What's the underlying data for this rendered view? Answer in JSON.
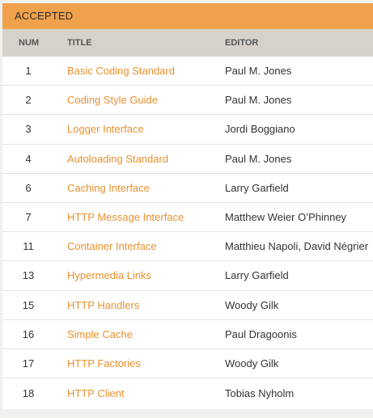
{
  "section": {
    "title": "ACCEPTED"
  },
  "columns": {
    "num": "NUM",
    "title": "TITLE",
    "editor": "EDITOR"
  },
  "rows": [
    {
      "num": "1",
      "title": "Basic Coding Standard",
      "editor": "Paul M. Jones"
    },
    {
      "num": "2",
      "title": "Coding Style Guide",
      "editor": "Paul M. Jones"
    },
    {
      "num": "3",
      "title": "Logger Interface",
      "editor": "Jordi Boggiano"
    },
    {
      "num": "4",
      "title": "Autoloading Standard",
      "editor": "Paul M. Jones"
    },
    {
      "num": "6",
      "title": "Caching Interface",
      "editor": "Larry Garfield"
    },
    {
      "num": "7",
      "title": "HTTP Message Interface",
      "editor": "Matthew Weier O’Phinney"
    },
    {
      "num": "11",
      "title": "Container Interface",
      "editor": "Matthieu Napoli, David Négrier"
    },
    {
      "num": "13",
      "title": "Hypermedia Links",
      "editor": "Larry Garfield"
    },
    {
      "num": "15",
      "title": "HTTP Handlers",
      "editor": "Woody Gilk"
    },
    {
      "num": "16",
      "title": "Simple Cache",
      "editor": "Paul Dragoonis"
    },
    {
      "num": "17",
      "title": "HTTP Factories",
      "editor": "Woody Gilk"
    },
    {
      "num": "18",
      "title": "HTTP Client",
      "editor": "Tobias Nyholm"
    }
  ],
  "colors": {
    "header_bg": "#f0a14c",
    "columns_bg": "#d6d2cb",
    "link": "#e8912f"
  }
}
